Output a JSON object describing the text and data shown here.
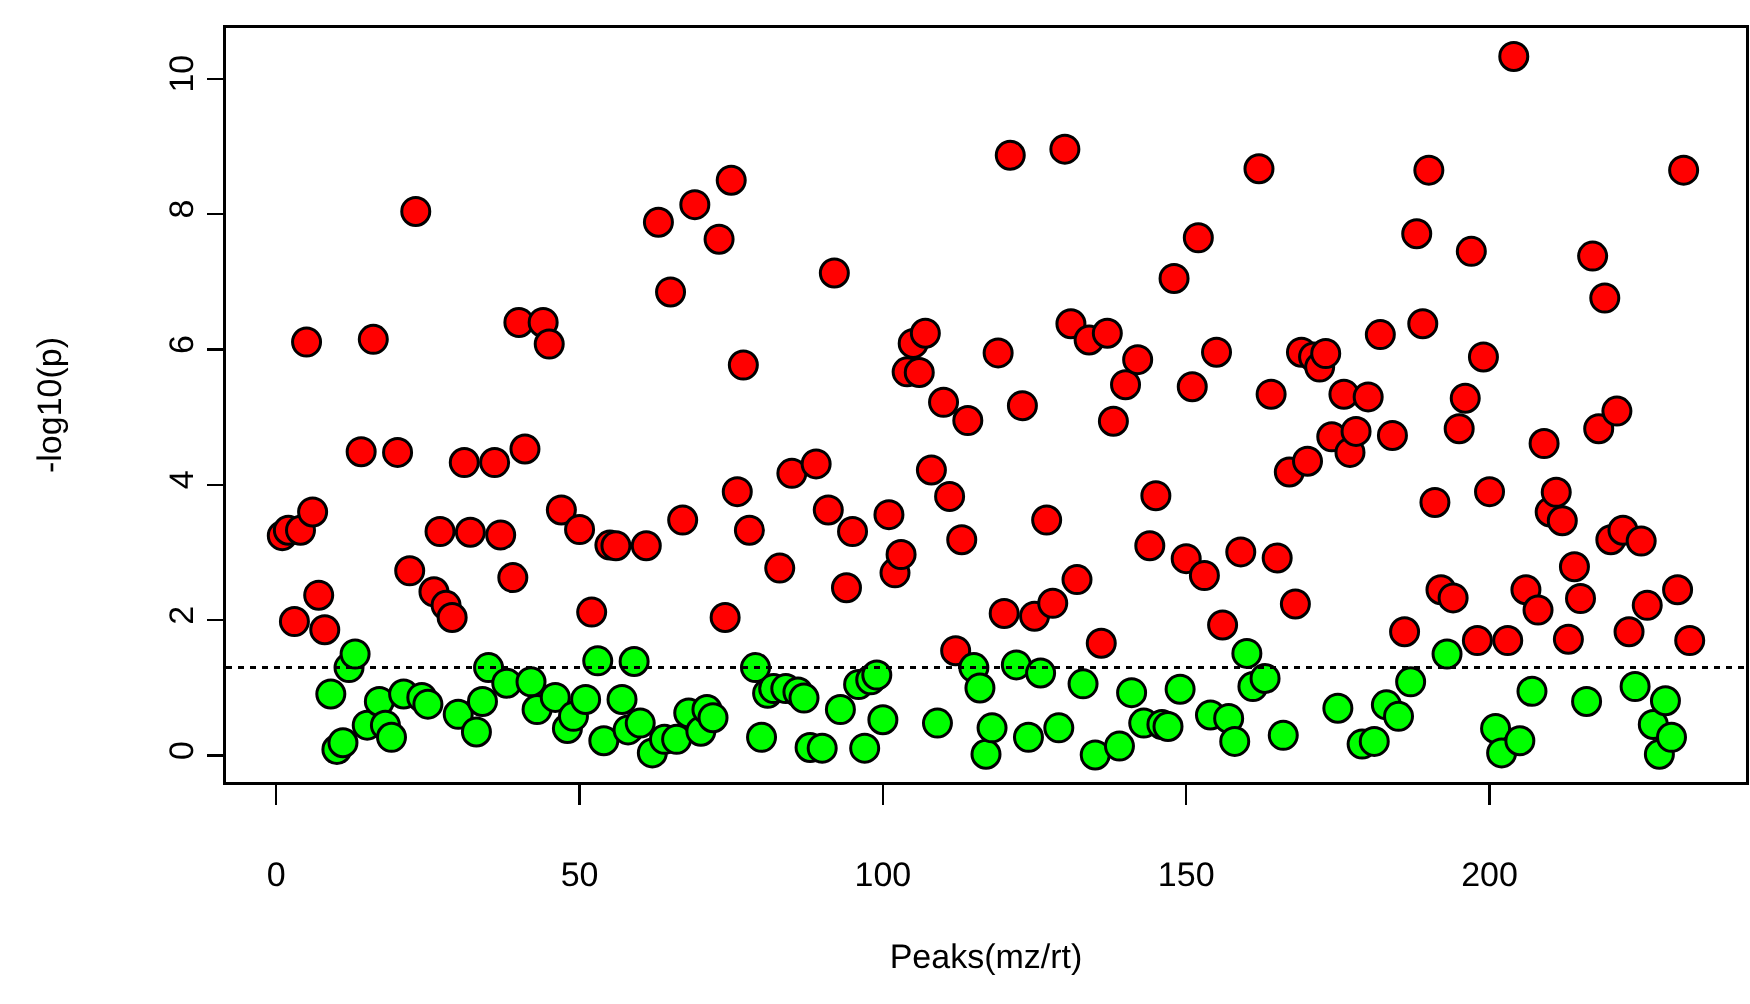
{
  "chart_data": {
    "type": "scatter",
    "xlabel": "Peaks(mz/rt)",
    "ylabel": "-log10(p)",
    "xlim": [
      -8.28,
      242.28
    ],
    "ylim": [
      -0.39,
      10.75
    ],
    "xticks": [
      0,
      50,
      100,
      150,
      200
    ],
    "yticks": [
      0,
      2,
      4,
      6,
      8,
      10
    ],
    "grid": false,
    "marker": "circle",
    "ref_lines": [
      {
        "axis": "y",
        "value": 1.3,
        "color": "#000000",
        "line_style": "dotted"
      }
    ],
    "series": [
      {
        "color": "#ff0000",
        "x": [
          1,
          2,
          4,
          6,
          3,
          5,
          7,
          8,
          14,
          16,
          20,
          22,
          23,
          26,
          27,
          28,
          29,
          31,
          32,
          36,
          37,
          39,
          40,
          41,
          44,
          45,
          47,
          50,
          52,
          55,
          56,
          61,
          63,
          65,
          67,
          69,
          73,
          74,
          75,
          76,
          77,
          78,
          83,
          85,
          89,
          91,
          92,
          94,
          95,
          101,
          102,
          103,
          104,
          105,
          106,
          107,
          108,
          110,
          111,
          112,
          113,
          114,
          119,
          120,
          121,
          123,
          125,
          127,
          128,
          130,
          131,
          132,
          134,
          136,
          137,
          138,
          140,
          142,
          144,
          145,
          148,
          150,
          151,
          152,
          153,
          155,
          156,
          159,
          162,
          164,
          165,
          167,
          168,
          169,
          170,
          171,
          172,
          173,
          174,
          176,
          177,
          178,
          180,
          182,
          184,
          186,
          188,
          189,
          190,
          191,
          192,
          194,
          195,
          196,
          197,
          198,
          199,
          200,
          203,
          204,
          206,
          208,
          209,
          210,
          211,
          212,
          213,
          214,
          215,
          217,
          218,
          219,
          220,
          221,
          222,
          223,
          225,
          226,
          231,
          232,
          233
        ],
        "values": [
          3.25,
          3.33,
          3.33,
          3.6,
          1.98,
          6.11,
          2.37,
          1.86,
          4.49,
          6.15,
          4.48,
          2.73,
          8.04,
          2.42,
          3.31,
          2.22,
          2.04,
          4.33,
          3.3,
          4.33,
          3.26,
          2.63,
          6.4,
          4.53,
          6.4,
          6.08,
          3.63,
          3.34,
          2.12,
          3.11,
          3.1,
          3.1,
          7.88,
          6.85,
          3.48,
          8.14,
          7.63,
          2.04,
          8.5,
          3.9,
          5.77,
          3.33,
          2.77,
          4.17,
          4.31,
          3.63,
          7.13,
          2.48,
          3.31,
          3.56,
          2.7,
          2.97,
          5.67,
          6.09,
          5.66,
          6.24,
          4.22,
          5.22,
          3.83,
          1.55,
          3.19,
          4.95,
          5.95,
          2.1,
          8.87,
          5.17,
          2.06,
          3.48,
          2.25,
          8.96,
          6.38,
          2.6,
          6.14,
          1.66,
          6.24,
          4.94,
          5.48,
          5.85,
          3.1,
          3.84,
          7.05,
          2.91,
          5.45,
          7.65,
          2.66,
          5.96,
          1.93,
          3.01,
          8.67,
          5.34,
          2.92,
          4.19,
          2.24,
          5.96,
          4.35,
          5.89,
          5.74,
          5.94,
          4.71,
          5.34,
          4.48,
          4.79,
          5.3,
          6.22,
          4.73,
          1.83,
          7.71,
          6.38,
          8.65,
          3.74,
          2.45,
          2.33,
          4.83,
          5.28,
          7.45,
          1.7,
          5.89,
          3.9,
          1.7,
          10.33,
          2.45,
          2.15,
          4.61,
          3.6,
          3.89,
          3.47,
          1.72,
          2.79,
          2.32,
          7.38,
          4.83,
          6.76,
          3.19,
          5.09,
          3.33,
          1.83,
          3.17,
          2.22,
          2.45,
          8.65,
          1.7
        ]
      },
      {
        "color": "#00ff00",
        "x": [
          9,
          10,
          11,
          12,
          13,
          15,
          17,
          18,
          19,
          21,
          24,
          25,
          30,
          33,
          34,
          35,
          38,
          42,
          43,
          46,
          48,
          49,
          51,
          53,
          54,
          57,
          58,
          59,
          60,
          62,
          64,
          66,
          68,
          70,
          71,
          72,
          79,
          80,
          81,
          82,
          84,
          86,
          87,
          88,
          90,
          93,
          96,
          97,
          98,
          99,
          100,
          109,
          115,
          116,
          117,
          118,
          122,
          124,
          126,
          129,
          133,
          135,
          139,
          141,
          143,
          146,
          147,
          149,
          154,
          157,
          158,
          160,
          161,
          163,
          166,
          175,
          179,
          181,
          183,
          185,
          187,
          193,
          201,
          202,
          205,
          207,
          216,
          224,
          227,
          228,
          229,
          230
        ],
        "values": [
          0.91,
          0.09,
          0.19,
          1.3,
          1.5,
          0.45,
          0.8,
          0.45,
          0.27,
          0.91,
          0.86,
          0.76,
          0.61,
          0.35,
          0.8,
          1.3,
          1.07,
          1.09,
          0.68,
          0.86,
          0.4,
          0.58,
          0.83,
          1.4,
          0.22,
          0.83,
          0.38,
          1.39,
          0.48,
          0.04,
          0.24,
          0.24,
          0.63,
          0.36,
          0.68,
          0.56,
          1.3,
          0.27,
          0.92,
          0.99,
          0.99,
          0.94,
          0.85,
          0.12,
          0.11,
          0.68,
          1.05,
          0.11,
          1.12,
          1.19,
          0.53,
          0.48,
          1.3,
          1.0,
          0.02,
          0.41,
          1.34,
          0.27,
          1.22,
          0.41,
          1.06,
          0.01,
          0.14,
          0.93,
          0.48,
          0.46,
          0.43,
          0.98,
          0.6,
          0.55,
          0.21,
          1.51,
          1.02,
          1.14,
          0.3,
          0.7,
          0.17,
          0.21,
          0.75,
          0.58,
          1.09,
          1.5,
          0.4,
          0.04,
          0.22,
          0.95,
          0.8,
          1.02,
          0.46,
          0.02,
          0.81,
          0.27
        ]
      }
    ]
  }
}
